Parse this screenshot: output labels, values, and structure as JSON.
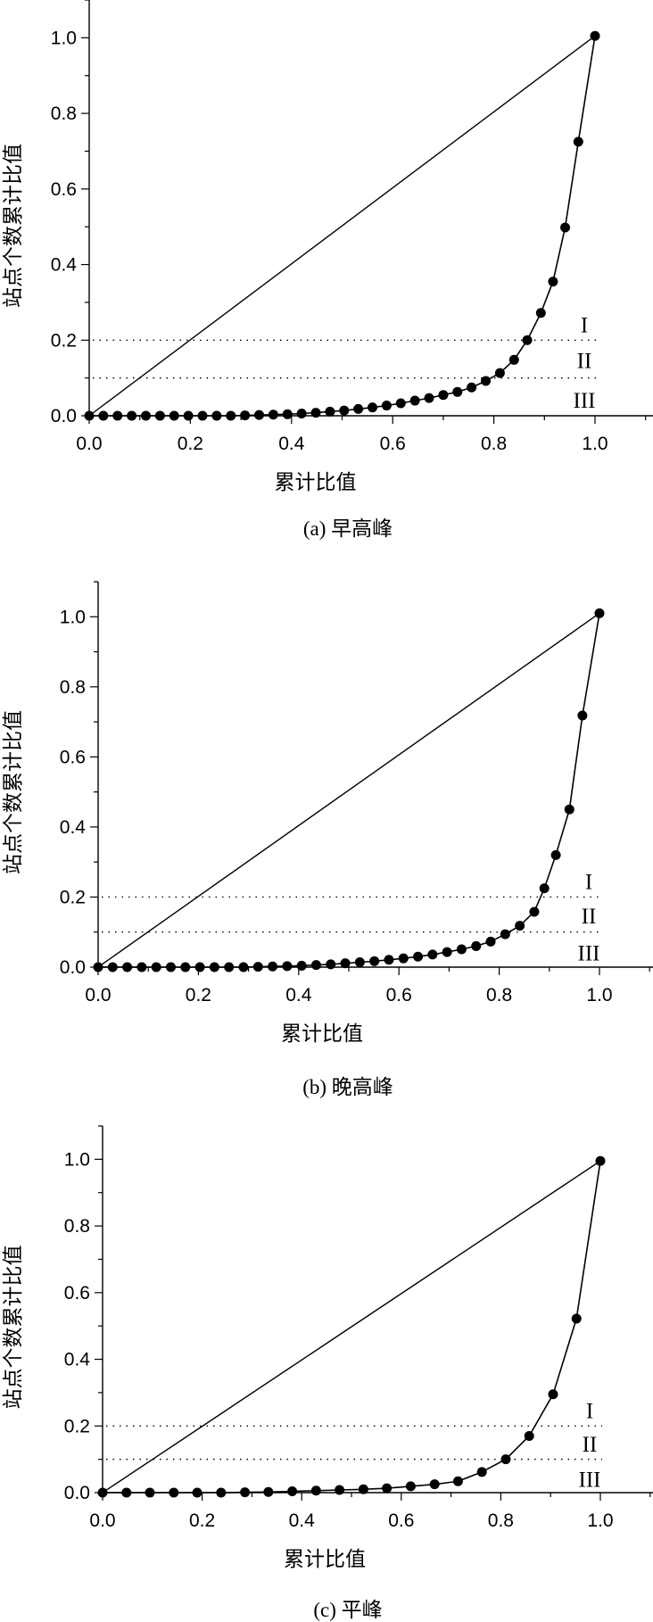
{
  "chart_data": [
    {
      "type": "line",
      "caption": "(a) 早高峰",
      "xlabel": "累计比值",
      "ylabel": "站点个数累计比值",
      "xlim": [
        0,
        1.1
      ],
      "ylim": [
        0,
        1.1
      ],
      "xticks": [
        "0.0",
        "0.2",
        "0.4",
        "0.6",
        "0.8",
        "1.0"
      ],
      "yticks": [
        "0.0",
        "0.2",
        "0.4",
        "0.6",
        "0.8",
        "1.0"
      ],
      "thresholds": [
        0.2,
        0.1
      ],
      "zones": [
        "I",
        "II",
        "III"
      ],
      "points": [
        [
          0.0,
          0.0
        ],
        [
          0.028,
          0.0
        ],
        [
          0.056,
          0.0
        ],
        [
          0.084,
          0.0
        ],
        [
          0.112,
          0.0
        ],
        [
          0.14,
          0.0
        ],
        [
          0.168,
          0.0
        ],
        [
          0.196,
          0.0
        ],
        [
          0.224,
          0.0
        ],
        [
          0.252,
          0.0
        ],
        [
          0.28,
          0.0
        ],
        [
          0.308,
          0.001
        ],
        [
          0.336,
          0.002
        ],
        [
          0.364,
          0.003
        ],
        [
          0.392,
          0.004
        ],
        [
          0.42,
          0.006
        ],
        [
          0.448,
          0.008
        ],
        [
          0.476,
          0.011
        ],
        [
          0.504,
          0.014
        ],
        [
          0.532,
          0.018
        ],
        [
          0.56,
          0.022
        ],
        [
          0.588,
          0.027
        ],
        [
          0.616,
          0.033
        ],
        [
          0.644,
          0.04
        ],
        [
          0.672,
          0.047
        ],
        [
          0.7,
          0.055
        ],
        [
          0.728,
          0.063
        ],
        [
          0.756,
          0.075
        ],
        [
          0.784,
          0.092
        ],
        [
          0.812,
          0.113
        ],
        [
          0.84,
          0.148
        ],
        [
          0.866,
          0.2
        ],
        [
          0.893,
          0.272
        ],
        [
          0.917,
          0.355
        ],
        [
          0.941,
          0.498
        ],
        [
          0.967,
          0.725
        ],
        [
          1.0,
          1.005
        ]
      ]
    },
    {
      "type": "line",
      "caption": "(b) 晚高峰",
      "xlabel": "累计比值",
      "ylabel": "站点个数累计比值",
      "xlim": [
        0,
        1.1
      ],
      "ylim": [
        0,
        1.1
      ],
      "xticks": [
        "0.0",
        "0.2",
        "0.4",
        "0.6",
        "0.8",
        "1.0"
      ],
      "yticks": [
        "0.0",
        "0.2",
        "0.4",
        "0.6",
        "0.8",
        "1.0"
      ],
      "thresholds": [
        0.2,
        0.1
      ],
      "zones": [
        "I",
        "II",
        "III"
      ],
      "points": [
        [
          0.0,
          0.0
        ],
        [
          0.029,
          0.0
        ],
        [
          0.058,
          0.0
        ],
        [
          0.087,
          0.0
        ],
        [
          0.116,
          0.0
        ],
        [
          0.145,
          0.0
        ],
        [
          0.174,
          0.0
        ],
        [
          0.203,
          0.0
        ],
        [
          0.232,
          0.0
        ],
        [
          0.261,
          0.0
        ],
        [
          0.29,
          0.0
        ],
        [
          0.319,
          0.001
        ],
        [
          0.348,
          0.002
        ],
        [
          0.377,
          0.003
        ],
        [
          0.406,
          0.004
        ],
        [
          0.435,
          0.006
        ],
        [
          0.464,
          0.008
        ],
        [
          0.493,
          0.011
        ],
        [
          0.522,
          0.014
        ],
        [
          0.551,
          0.017
        ],
        [
          0.58,
          0.021
        ],
        [
          0.609,
          0.025
        ],
        [
          0.638,
          0.03
        ],
        [
          0.667,
          0.036
        ],
        [
          0.696,
          0.043
        ],
        [
          0.725,
          0.051
        ],
        [
          0.754,
          0.06
        ],
        [
          0.783,
          0.073
        ],
        [
          0.812,
          0.094
        ],
        [
          0.841,
          0.118
        ],
        [
          0.87,
          0.158
        ],
        [
          0.89,
          0.225
        ],
        [
          0.913,
          0.32
        ],
        [
          0.94,
          0.45
        ],
        [
          0.966,
          0.718
        ],
        [
          1.0,
          1.01
        ]
      ]
    },
    {
      "type": "line",
      "caption": "(c) 平峰",
      "xlabel": "累计比值",
      "ylabel": "站点个数累计比值",
      "xlim": [
        0,
        1.1
      ],
      "ylim": [
        0,
        1.1
      ],
      "xticks": [
        "0.0",
        "0.2",
        "0.4",
        "0.6",
        "0.8",
        "1.0"
      ],
      "yticks": [
        "0.0",
        "0.2",
        "0.4",
        "0.6",
        "0.8",
        "1.0"
      ],
      "thresholds": [
        0.2,
        0.1
      ],
      "zones": [
        "I",
        "II",
        "III"
      ],
      "points": [
        [
          0.0,
          0.0
        ],
        [
          0.048,
          0.0
        ],
        [
          0.095,
          0.0
        ],
        [
          0.143,
          0.0
        ],
        [
          0.19,
          0.0
        ],
        [
          0.238,
          0.0
        ],
        [
          0.286,
          0.001
        ],
        [
          0.333,
          0.002
        ],
        [
          0.381,
          0.004
        ],
        [
          0.429,
          0.006
        ],
        [
          0.476,
          0.008
        ],
        [
          0.524,
          0.01
        ],
        [
          0.571,
          0.013
        ],
        [
          0.619,
          0.019
        ],
        [
          0.667,
          0.025
        ],
        [
          0.714,
          0.034
        ],
        [
          0.762,
          0.062
        ],
        [
          0.81,
          0.1
        ],
        [
          0.857,
          0.17
        ],
        [
          0.905,
          0.295
        ],
        [
          0.952,
          0.522
        ],
        [
          1.0,
          0.995
        ]
      ]
    }
  ]
}
